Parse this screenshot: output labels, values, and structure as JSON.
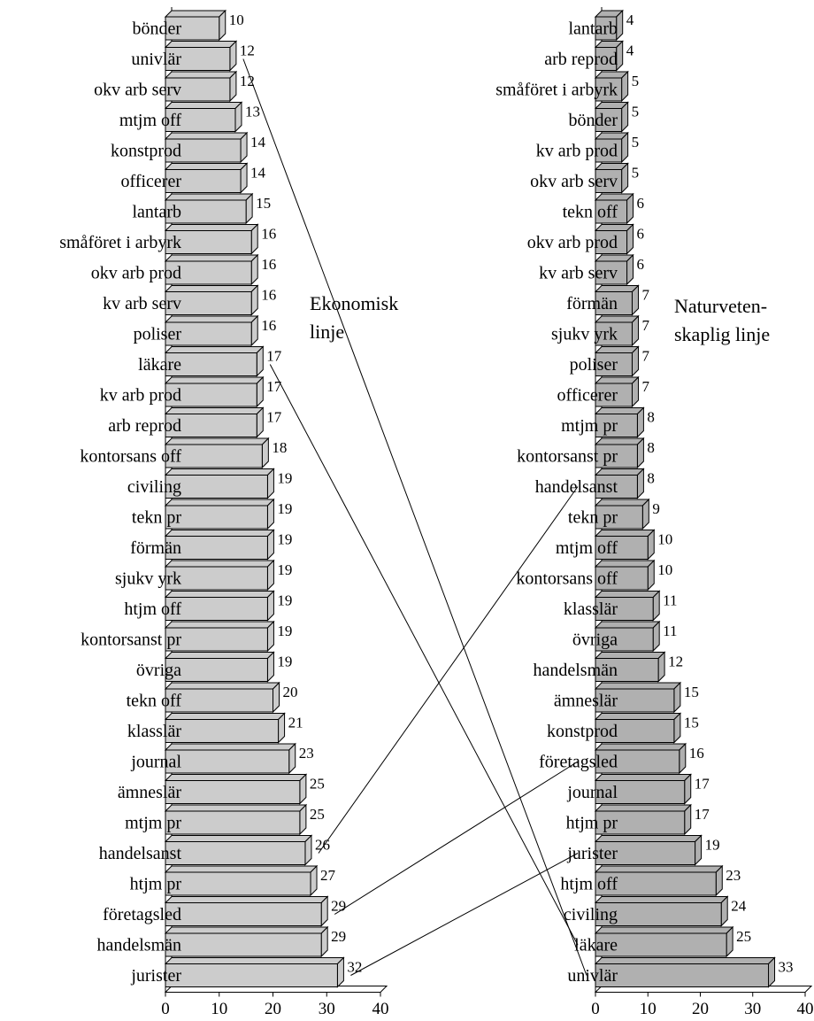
{
  "chart_data": [
    {
      "type": "bar",
      "orientation": "horizontal",
      "color": "#cccccc",
      "annotation": [
        "Ekonomisk",
        "linje"
      ],
      "categories": [
        "bönder",
        "univlär",
        "okv arb serv",
        "mtjm off",
        "konstprod",
        "officerer",
        "lantarb",
        "småföret i arbyrk",
        "okv arb prod",
        "kv arb serv",
        "poliser",
        "läkare",
        "kv arb prod",
        "arb reprod",
        "kontorsans off",
        "civiling",
        "tekn pr",
        "förmän",
        "sjukv yrk",
        "htjm off",
        "kontorsanst pr",
        "övriga",
        "tekn off",
        "klasslär",
        "journal",
        "ämneslär",
        "mtjm pr",
        "handelsanst",
        "htjm pr",
        "företagsled",
        "handelsmän",
        "jurister"
      ],
      "values": [
        10,
        12,
        12,
        13,
        14,
        14,
        15,
        16,
        16,
        16,
        16,
        17,
        17,
        17,
        18,
        19,
        19,
        19,
        19,
        19,
        19,
        19,
        20,
        21,
        23,
        25,
        25,
        26,
        27,
        29,
        29,
        32
      ],
      "xlim": [
        0,
        40
      ],
      "xticks": [
        0,
        10,
        20,
        30,
        40
      ]
    },
    {
      "type": "bar",
      "orientation": "horizontal",
      "color": "#b0b0b0",
      "annotation": [
        "Naturveten-",
        "skaplig linje"
      ],
      "categories": [
        "lantarb",
        "arb reprod",
        "småföret i arbyrk",
        "bönder",
        "kv arb prod",
        "okv arb serv",
        "tekn off",
        "okv arb prod",
        "kv arb serv",
        "förmän",
        "sjukv yrk",
        "poliser",
        "officerer",
        "mtjm pr",
        "kontorsanst pr",
        "handelsanst",
        "tekn pr",
        "mtjm off",
        "kontorsans off",
        "klasslär",
        "övriga",
        "handelsmän",
        "ämneslär",
        "konstprod",
        "företagsled",
        "journal",
        "htjm pr",
        "jurister",
        "htjm off",
        "civiling",
        "läkare",
        "univlär"
      ],
      "values": [
        4,
        4,
        5,
        5,
        5,
        5,
        6,
        6,
        6,
        7,
        7,
        7,
        7,
        8,
        8,
        8,
        9,
        10,
        10,
        11,
        11,
        12,
        15,
        15,
        16,
        17,
        17,
        19,
        23,
        24,
        25,
        33
      ],
      "xlim": [
        0,
        40
      ],
      "xticks": [
        0,
        10,
        20,
        30,
        40
      ]
    }
  ]
}
